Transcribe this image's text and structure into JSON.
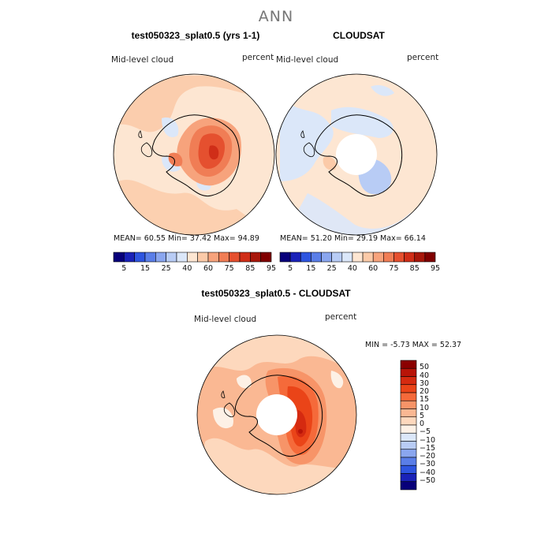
{
  "figure": {
    "title": "ANN"
  },
  "panels": [
    {
      "title": "test050323_splat0.5 (yrs 1-1)",
      "variable_label": "Mid-level cloud",
      "units_label": "percent",
      "stats": "MEAN=  60.55   Min=  37.42   Max=  94.89"
    },
    {
      "title": "CLOUDSAT",
      "variable_label": "Mid-level cloud",
      "units_label": "percent",
      "stats": "MEAN=  51.20   Min=  29.19   Max=  66.14"
    },
    {
      "title": "test050323_splat0.5 - CLOUDSAT",
      "variable_label": "Mid-level cloud",
      "units_label": "percent",
      "stats": "MIN =   -5.73  MAX =   52.37"
    }
  ],
  "colorbar_abs": {
    "tick_labels": [
      "5",
      "15",
      "25",
      "40",
      "60",
      "75",
      "85",
      "95"
    ],
    "colors": [
      "#08007a",
      "#1a22b8",
      "#2e55e0",
      "#5a7ee8",
      "#8aa6ef",
      "#b8ccf5",
      "#dbe7f9",
      "#fde6d2",
      "#fbcaa8",
      "#f7a37c",
      "#f07d55",
      "#e5502f",
      "#d02e18",
      "#a8170b",
      "#800000"
    ]
  },
  "colorbar_diff": {
    "tick_labels": [
      "50",
      "40",
      "30",
      "20",
      "15",
      "10",
      "5",
      "0",
      "−5",
      "−10",
      "−15",
      "−20",
      "−30",
      "−40",
      "−50"
    ],
    "colors": [
      "#8b0000",
      "#b81408",
      "#d52a10",
      "#ea4418",
      "#f56a3a",
      "#f79468",
      "#fab893",
      "#fdd8bd",
      "#fdf1e6",
      "#dbe7f9",
      "#b8ccf5",
      "#8aa6ef",
      "#5a7ee8",
      "#2e55e0",
      "#1a22b8",
      "#08007a"
    ]
  }
}
